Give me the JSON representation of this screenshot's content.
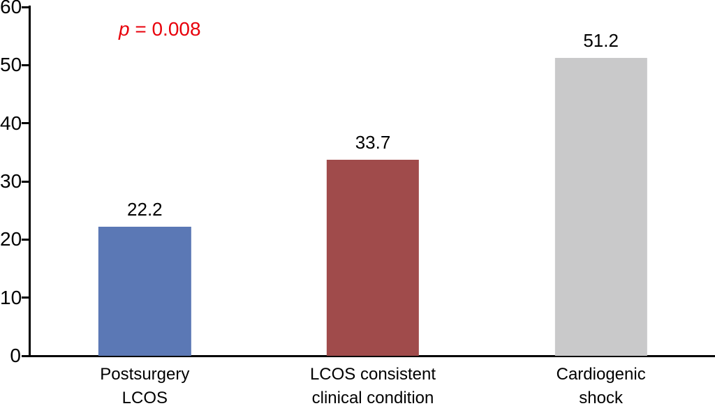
{
  "chart_data": {
    "type": "bar",
    "title": "",
    "xlabel": "",
    "ylabel": "",
    "categories": [
      "Postsurgery\nLCOS",
      "LCOS consistent\nclinical condition",
      "Cardiogenic\nshock"
    ],
    "values": [
      22.2,
      33.7,
      51.2
    ],
    "value_labels": [
      "22.2",
      "33.7",
      "51.2"
    ],
    "bar_colors": [
      "#5b78b5",
      "#a04b4b",
      "#c9c9ca"
    ],
    "ylim": [
      0,
      60
    ],
    "yticks": [
      0,
      10,
      20,
      30,
      40,
      50,
      60
    ],
    "grid": false,
    "legend": "none",
    "annotation": "p = 0.008",
    "annotation_p": "p",
    "annotation_rest": " = 0.008",
    "annotation_color": "#e8000b",
    "axis_color": "#000000"
  }
}
